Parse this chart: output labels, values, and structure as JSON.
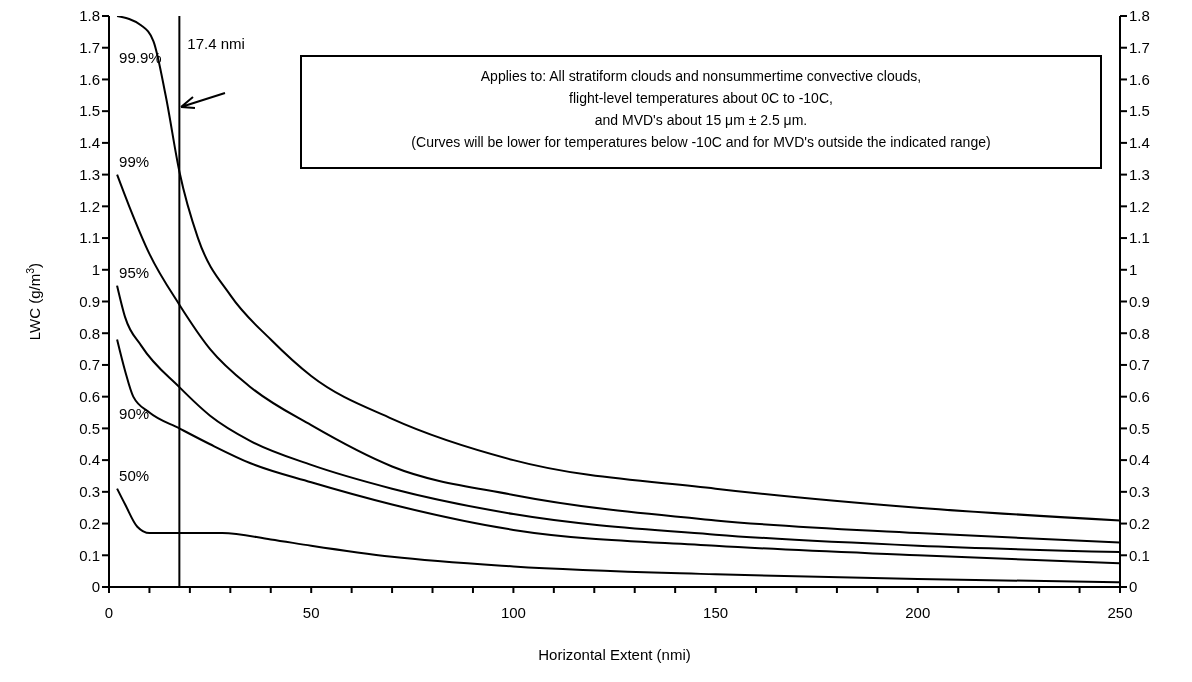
{
  "chart_data": {
    "type": "line",
    "xlabel": "Horizontal Extent (nmi)",
    "ylabel": "LWC (g/m$^{3}$)",
    "xlim": [
      0,
      250
    ],
    "xticks": [
      0,
      {
        "value": 10,
        "label": null
      },
      {
        "value": 20,
        "label": null
      },
      {
        "value": 30,
        "label": null
      },
      {
        "value": 40,
        "label": null
      },
      50,
      {
        "value": 60,
        "label": null
      },
      {
        "value": 70,
        "label": null
      },
      {
        "value": 80,
        "label": null
      },
      {
        "value": 90,
        "label": null
      },
      100,
      {
        "value": 110,
        "label": null
      },
      {
        "value": 120,
        "label": null
      },
      {
        "value": 130,
        "label": null
      },
      {
        "value": 140,
        "label": null
      },
      150,
      {
        "value": 160,
        "label": null
      },
      {
        "value": 170,
        "label": null
      },
      {
        "value": 180,
        "label": null
      },
      {
        "value": 190,
        "label": null
      },
      200,
      {
        "value": 210,
        "label": null
      },
      {
        "value": 220,
        "label": null
      },
      {
        "value": 230,
        "label": null
      },
      {
        "value": 240,
        "label": null
      },
      250
    ],
    "ylim": [
      0,
      1.8
    ],
    "yticks": [
      0,
      0.1,
      0.2,
      0.3,
      0.4,
      0.5,
      0.6,
      0.7,
      0.8,
      0.9,
      1,
      1.1,
      1.2,
      1.3,
      1.4,
      1.5,
      1.6,
      1.7,
      1.8
    ],
    "y2lim": [
      0,
      1.8
    ],
    "y2ticks": [
      0,
      0.1,
      0.2,
      0.3,
      0.4,
      0.5,
      0.6,
      0.7,
      0.8,
      0.9,
      1,
      1.1,
      1.2,
      1.3,
      1.4,
      1.5,
      1.6,
      1.7,
      1.8
    ],
    "grid": false,
    "legend": false,
    "marker": "none",
    "line_style": "solid",
    "series": [
      {
        "name": "99.9%",
        "color": "#000000",
        "x": [
          2,
          8,
          11,
          14,
          17.4,
          22,
          30,
          40,
          50,
          70,
          100,
          150,
          200,
          250
        ],
        "values": [
          1.8,
          1.77,
          1.72,
          1.55,
          1.31,
          1.1,
          0.92,
          0.78,
          0.665,
          0.53,
          0.4,
          0.31,
          0.25,
          0.21
        ]
      },
      {
        "name": "99%",
        "color": "#000000",
        "x": [
          2,
          5,
          10,
          17.4,
          25,
          35,
          50,
          70,
          100,
          150,
          200,
          250
        ],
        "values": [
          1.3,
          1.2,
          1.05,
          0.89,
          0.75,
          0.63,
          0.51,
          0.38,
          0.29,
          0.21,
          0.17,
          0.14
        ]
      },
      {
        "name": "95%",
        "color": "#000000",
        "x": [
          2,
          4,
          8,
          17.4,
          25,
          35,
          50,
          70,
          100,
          150,
          200,
          250
        ],
        "values": [
          0.95,
          0.85,
          0.76,
          0.63,
          0.54,
          0.46,
          0.385,
          0.31,
          0.23,
          0.165,
          0.13,
          0.11
        ]
      },
      {
        "name": "90%",
        "color": "#000000",
        "x": [
          2,
          4,
          6,
          10,
          17.4,
          25,
          35,
          50,
          70,
          100,
          150,
          200,
          250
        ],
        "values": [
          0.78,
          0.68,
          0.6,
          0.55,
          0.5,
          0.45,
          0.39,
          0.33,
          0.26,
          0.18,
          0.13,
          0.1,
          0.075
        ]
      },
      {
        "name": "50%",
        "color": "#000000",
        "x": [
          2,
          4,
          7,
          10,
          17.4,
          28,
          40,
          50,
          70,
          100,
          150,
          200,
          250
        ],
        "values": [
          0.31,
          0.26,
          0.19,
          0.17,
          0.17,
          0.17,
          0.15,
          0.13,
          0.095,
          0.065,
          0.04,
          0.025,
          0.015
        ]
      }
    ],
    "ref_lines": [
      {
        "axis": "x",
        "value": 17.4,
        "label": "17.4 nmi",
        "color": "#000000"
      }
    ],
    "annotations": [
      "Applies to:  All stratiform clouds and nonsummertime convective clouds,",
      "flight-level temperatures about 0C to -10C,",
      "and MVD's about 15 μm  ± 2.5 μm.",
      "(Curves will be lower for temperatures below -10C and for MVD's outside the indicated range)"
    ]
  }
}
